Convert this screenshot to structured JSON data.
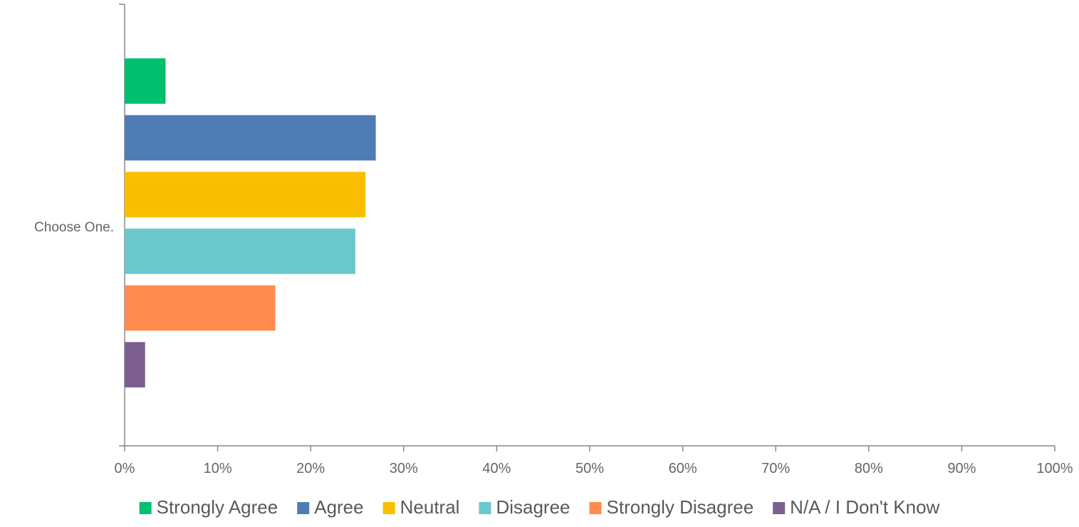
{
  "chart_data": {
    "type": "bar",
    "orientation": "horizontal",
    "categories": [
      "Choose One."
    ],
    "series": [
      {
        "name": "Strongly Agree",
        "values": [
          4.4
        ],
        "color": "#00BF6F"
      },
      {
        "name": "Agree",
        "values": [
          27.0
        ],
        "color": "#507CB6"
      },
      {
        "name": "Neutral",
        "values": [
          25.9
        ],
        "color": "#F9BE00"
      },
      {
        "name": "Disagree",
        "values": [
          24.8
        ],
        "color": "#6BC8CD"
      },
      {
        "name": "Strongly Disagree",
        "values": [
          16.2
        ],
        "color": "#FF8B4F"
      },
      {
        "name": "N/A / I Don't Know",
        "values": [
          2.2
        ],
        "color": "#7D5E90"
      }
    ],
    "xlim": [
      0,
      100
    ],
    "x_ticks": [
      0,
      10,
      20,
      30,
      40,
      50,
      60,
      70,
      80,
      90,
      100
    ],
    "x_tick_labels": [
      "0%",
      "10%",
      "20%",
      "30%",
      "40%",
      "50%",
      "60%",
      "70%",
      "80%",
      "90%",
      "100%"
    ],
    "grid": false,
    "legend_position": "bottom"
  }
}
